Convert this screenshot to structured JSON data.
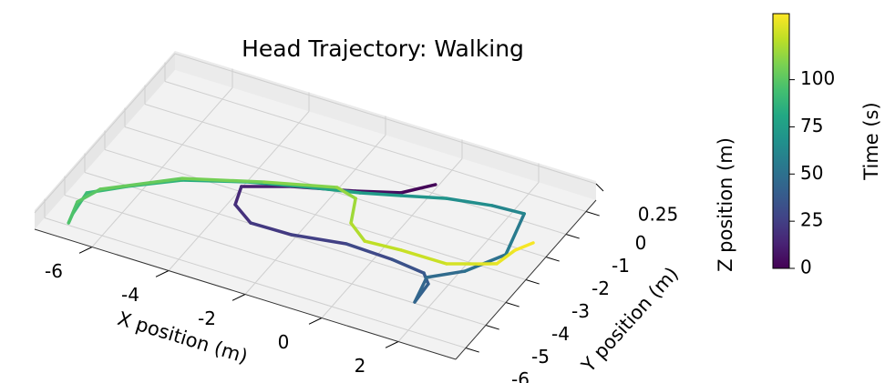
{
  "chart_data": {
    "type": "line3d",
    "title": "Head Trajectory: Walking",
    "xlabel": "X position (m)",
    "ylabel": "Y position (m)",
    "zlabel": "Z position (m)",
    "colorbar_label": "Time (s)",
    "colormap": [
      "#440154",
      "#482475",
      "#414487",
      "#355f8d",
      "#2a788e",
      "#21918c",
      "#22a884",
      "#44bf70",
      "#7ad151",
      "#bddf26",
      "#fde725"
    ],
    "clim": [
      0,
      135
    ],
    "cticks": [
      0,
      25,
      50,
      75,
      100
    ],
    "xlim": [
      -7.5,
      3.5
    ],
    "xticks": [
      -6,
      -4,
      -2,
      0,
      2
    ],
    "ylim": [
      -6.5,
      0.5
    ],
    "yticks": [
      -6,
      -5,
      -4,
      -3,
      -2,
      -1,
      0
    ],
    "zlim": [
      -0.05,
      0.3
    ],
    "zticks": [
      0.25
    ],
    "grid": true,
    "series": [
      {
        "name": "Time (s)",
        "x": [
          0.07,
          -0.49,
          -1.46,
          -2.85,
          -3.88,
          -3.68,
          -3.03,
          -1.98,
          -0.69,
          0.53,
          1.43,
          1.72,
          1.77,
          1.57,
          2.24,
          2.78,
          2.42,
          1.61,
          0.55,
          -0.44,
          -1.33,
          -2.66,
          -3.87,
          -5.21,
          -6.22,
          -6.94,
          -6.85,
          -6.77,
          -6.97,
          -6.73,
          -5.24,
          -3.49,
          -1.9,
          -1.32,
          -0.97,
          -0.36,
          0.55,
          1.73,
          2.39,
          2.76,
          2.89,
          3.13
        ],
        "y": [
          -0.96,
          -1.61,
          -2.04,
          -2.56,
          -3.1,
          -3.79,
          -4.26,
          -4.23,
          -3.96,
          -4.01,
          -4.14,
          -4.47,
          -5.24,
          -4.26,
          -3.64,
          -2.63,
          -1.02,
          -1.08,
          -1.32,
          -1.71,
          -2.05,
          -2.46,
          -2.89,
          -3.51,
          -4.31,
          -4.97,
          -5.84,
          -6.2,
          -5.38,
          -4.7,
          -3.45,
          -2.7,
          -2.11,
          -2.29,
          -3.19,
          -3.67,
          -3.59,
          -3.58,
          -3.24,
          -3.04,
          -2.38,
          -1.93
        ],
        "z": [
          0.1,
          0.1,
          0.1,
          0.1,
          0.1,
          0.1,
          0.1,
          0.1,
          0.1,
          0.1,
          0.1,
          0.1,
          0.1,
          0.1,
          0.1,
          0.1,
          0.1,
          0.1,
          0.1,
          0.1,
          0.1,
          0.1,
          0.1,
          0.1,
          0.1,
          0.1,
          0.1,
          0.1,
          0.1,
          0.1,
          0.1,
          0.1,
          0.1,
          0.1,
          0.1,
          0.1,
          0.1,
          0.1,
          0.1,
          0.1,
          0.1,
          0.1
        ],
        "t": [
          0,
          3,
          7,
          10,
          14,
          17,
          21,
          24,
          27,
          32,
          36,
          40,
          43,
          46,
          48,
          52,
          59,
          64,
          68,
          72,
          75,
          79,
          82,
          86,
          89,
          91,
          93,
          96,
          98,
          101,
          105,
          108,
          112,
          114,
          117,
          121,
          123,
          125,
          128,
          130,
          132,
          135
        ]
      }
    ]
  }
}
